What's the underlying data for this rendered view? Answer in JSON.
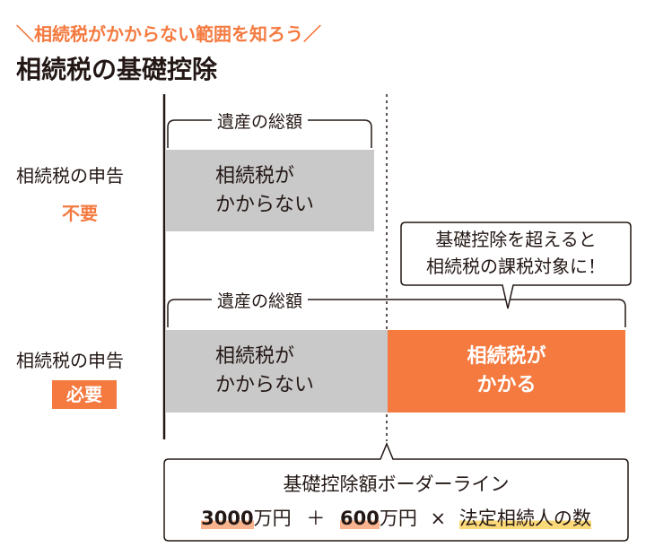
{
  "header": {
    "subtitle": "＼相続税がかからない範囲を知ろう／",
    "title": "相続税の基礎控除"
  },
  "colors": {
    "accent": "#f47a40",
    "gray": "#c9c9c9",
    "text": "#231815"
  },
  "row1": {
    "label": "相続税の申告",
    "status": "不要",
    "brace_label": "遺産の総額",
    "box_line1": "相続税が",
    "box_line2": "かからない"
  },
  "row2": {
    "label": "相続税の申告",
    "status": "必要",
    "brace_label": "遺産の総額",
    "box_line1": "相続税が",
    "box_line2": "かからない",
    "taxed_line1": "相続税が",
    "taxed_line2": "かかる"
  },
  "callout": {
    "line1": "基礎控除を超えると",
    "line2": "相続税の課税対象に！"
  },
  "formula": {
    "title": "基礎控除額ボーダーライン",
    "base": "3000",
    "base_unit": "万円",
    "plus": "＋",
    "per": "600",
    "per_unit": "万円",
    "times": "×",
    "heirs": "法定相続人の数"
  }
}
